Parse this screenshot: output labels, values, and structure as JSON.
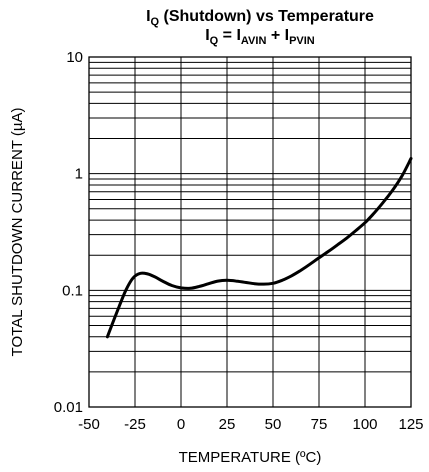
{
  "chart_data": {
    "type": "line",
    "title": {
      "line1": {
        "main": "I",
        "sub": "Q",
        "rest": " (Shutdown) vs Temperature"
      },
      "line2": {
        "i1": "I",
        "s1": "Q",
        "eq": " = I",
        "s2": "AVIN",
        "plus": " + I",
        "s3": "PVIN"
      }
    },
    "xlabel": "TEMPERATURE (ºC)",
    "ylabel": "TOTAL SHUTDOWN CURRENT (µA)",
    "xlim": [
      -50,
      125
    ],
    "ylim": [
      0.01,
      10
    ],
    "yscale": "log",
    "grid": true,
    "x_ticks": [
      -50,
      -25,
      0,
      25,
      50,
      75,
      100,
      125
    ],
    "x_tick_labels": [
      "-50",
      "-25",
      "0",
      "25",
      "50",
      "75",
      "100",
      "125"
    ],
    "y_ticks": [
      0.01,
      0.1,
      1,
      10
    ],
    "y_tick_labels": [
      "0.01",
      "0.1",
      "1",
      "10"
    ],
    "series": [
      {
        "x": [
          -40,
          -35,
          -30,
          -26,
          -22,
          -18,
          -14,
          -10,
          -5,
          0,
          5,
          10,
          15,
          20,
          25,
          30,
          35,
          40,
          45,
          50,
          55,
          60,
          65,
          70,
          75,
          80,
          85,
          90,
          95,
          100,
          105,
          110,
          115,
          120,
          125
        ],
        "y": [
          0.04,
          0.064,
          0.1,
          0.128,
          0.14,
          0.138,
          0.13,
          0.12,
          0.11,
          0.105,
          0.104,
          0.108,
          0.114,
          0.12,
          0.122,
          0.12,
          0.117,
          0.114,
          0.113,
          0.115,
          0.122,
          0.133,
          0.148,
          0.167,
          0.19,
          0.215,
          0.245,
          0.28,
          0.325,
          0.38,
          0.46,
          0.57,
          0.72,
          0.95,
          1.35
        ]
      }
    ]
  }
}
